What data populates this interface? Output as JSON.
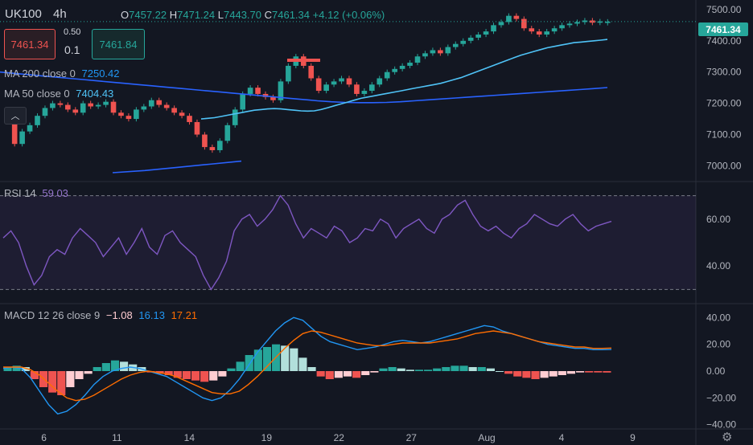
{
  "header": {
    "symbol": "UK100",
    "interval": "4h",
    "ohlc": {
      "open_label": "O",
      "open": "7457.22",
      "high_label": "H",
      "high": "7471.24",
      "low_label": "L",
      "low": "7443.70",
      "close_label": "C",
      "close": "7461.34",
      "change": "+4.12 (+0.06%)"
    }
  },
  "trade_panel": {
    "sell_price": "7461.34",
    "spread": "0.50",
    "quantity": "0.1",
    "buy_price": "7461.84"
  },
  "indicators": {
    "ma200": {
      "label": "MA 200 close 0",
      "value": "7250.42",
      "color": "#2962ff"
    },
    "ma50": {
      "label": "MA 50 close 0",
      "value": "7404.43",
      "color": "#2196f3"
    },
    "rsi": {
      "label": "RSI 14",
      "value": "59.03",
      "color": "#7e57c2"
    },
    "macd": {
      "label": "MACD 12 26 close 9",
      "hist": "−1.08",
      "macd": "16.13",
      "signal": "17.21"
    }
  },
  "last_price_tag": "7461.34",
  "colors": {
    "up": "#26a69a",
    "down": "#ef5350",
    "background": "#131722",
    "macd_line": "#2196f3",
    "signal_line": "#ff6d00",
    "rsi_line": "#7e57c2",
    "hist_up_strong": "#26a69a",
    "hist_up_weak": "#b2dfdb",
    "hist_down_strong": "#ef5350",
    "hist_down_weak": "#ffcdd2"
  },
  "chart_data": [
    {
      "type": "candlestick",
      "title": "UK100 4h",
      "yticks": [
        "7500.00",
        "7400.00",
        "7300.00",
        "7200.00",
        "7100.00",
        "7000.00"
      ],
      "ylim": [
        6960,
        7510
      ],
      "xtick_labels": [
        "6",
        "11",
        "14",
        "19",
        "22",
        "27",
        "Aug",
        "4",
        "9"
      ],
      "grid": false,
      "close": [
        7150,
        7070,
        7110,
        7130,
        7160,
        7185,
        7200,
        7195,
        7180,
        7170,
        7200,
        7190,
        7195,
        7205,
        7170,
        7160,
        7150,
        7180,
        7190,
        7210,
        7195,
        7185,
        7170,
        7160,
        7140,
        7100,
        7060,
        7050,
        7080,
        7130,
        7180,
        7230,
        7250,
        7230,
        7220,
        7210,
        7270,
        7320,
        7350,
        7320,
        7280,
        7240,
        7260,
        7270,
        7280,
        7260,
        7230,
        7240,
        7260,
        7280,
        7300,
        7310,
        7320,
        7330,
        7350,
        7360,
        7370,
        7360,
        7380,
        7390,
        7400,
        7410,
        7420,
        7430,
        7450,
        7460,
        7480,
        7470,
        7440,
        7430,
        7420,
        7430,
        7440,
        7450,
        7455,
        7460,
        7465,
        7458,
        7462,
        7461.34
      ],
      "open": [
        7170,
        7150,
        7070,
        7110,
        7130,
        7160,
        7185,
        7200,
        7195,
        7180,
        7170,
        7200,
        7190,
        7195,
        7205,
        7170,
        7160,
        7150,
        7180,
        7190,
        7210,
        7195,
        7185,
        7170,
        7160,
        7140,
        7100,
        7060,
        7050,
        7080,
        7130,
        7180,
        7230,
        7250,
        7230,
        7220,
        7210,
        7270,
        7320,
        7350,
        7320,
        7280,
        7240,
        7260,
        7270,
        7280,
        7260,
        7230,
        7240,
        7260,
        7280,
        7300,
        7310,
        7320,
        7330,
        7350,
        7360,
        7370,
        7360,
        7380,
        7390,
        7400,
        7410,
        7420,
        7430,
        7450,
        7460,
        7480,
        7470,
        7440,
        7430,
        7420,
        7430,
        7440,
        7450,
        7455,
        7460,
        7465,
        7458,
        7457.22
      ],
      "ma50": [
        7150,
        7152,
        7154,
        7158,
        7162,
        7166,
        7170,
        7174,
        7178,
        7180,
        7182,
        7183,
        7182,
        7180,
        7178,
        7176,
        7175,
        7176,
        7180,
        7186,
        7192,
        7198,
        7204,
        7210,
        7216,
        7220,
        7224,
        7228,
        7232,
        7236,
        7240,
        7244,
        7248,
        7252,
        7256,
        7260,
        7264,
        7270,
        7276,
        7282,
        7290,
        7298,
        7306,
        7314,
        7322,
        7330,
        7338,
        7346,
        7354,
        7360,
        7366,
        7372,
        7378,
        7382,
        7386,
        7390,
        7394,
        7396,
        7398,
        7400,
        7402,
        7404.43
      ],
      "ma200": [
        7300,
        7296,
        7292,
        7288,
        7284,
        7280,
        7276,
        7272,
        7268,
        7264,
        7260,
        7256,
        7252,
        7248,
        7244,
        7240,
        7236,
        7232,
        7228,
        7224,
        7220,
        7216,
        7212,
        7208,
        7205,
        7203,
        7202,
        7202,
        7203,
        7205,
        7208,
        7211,
        7214,
        7217,
        7220,
        7223,
        7226,
        7229,
        7232,
        7235,
        7238,
        7241,
        7244,
        7247,
        7250.42
      ],
      "ma50_early": [
        6978,
        6985,
        6995,
        7005,
        7015
      ]
    },
    {
      "type": "line",
      "title": "RSI 14",
      "yticks": [
        "60.00",
        "40.00"
      ],
      "ylim": [
        25,
        75
      ],
      "bands": [
        70,
        30
      ],
      "values": [
        52,
        55,
        50,
        40,
        32,
        36,
        44,
        47,
        45,
        52,
        56,
        53,
        50,
        44,
        48,
        52,
        45,
        50,
        56,
        48,
        45,
        53,
        55,
        50,
        47,
        44,
        36,
        30,
        35,
        42,
        55,
        60,
        62,
        57,
        60,
        64,
        70,
        66,
        58,
        52,
        56,
        54,
        52,
        57,
        55,
        50,
        52,
        56,
        55,
        60,
        58,
        52,
        56,
        58,
        60,
        56,
        54,
        60,
        62,
        66,
        68,
        62,
        57,
        55,
        57,
        54,
        52,
        56,
        58,
        62,
        60,
        58,
        57,
        60,
        62,
        58,
        55,
        57,
        58,
        59.03
      ]
    },
    {
      "type": "macd",
      "title": "MACD 12 26 close 9",
      "yticks": [
        "40.00",
        "20.00",
        "0.00",
        "−20.00",
        "−40.00"
      ],
      "ylim": [
        -42,
        48
      ],
      "macd": [
        2,
        3,
        2,
        -5,
        -15,
        -25,
        -32,
        -30,
        -25,
        -18,
        -10,
        -4,
        0,
        2,
        3,
        2,
        0,
        -2,
        -4,
        -8,
        -12,
        -16,
        -20,
        -22,
        -20,
        -14,
        -6,
        4,
        14,
        22,
        30,
        36,
        40,
        38,
        32,
        26,
        22,
        20,
        18,
        16,
        17,
        18,
        20,
        22,
        23,
        22,
        21,
        22,
        24,
        26,
        28,
        30,
        32,
        34,
        33,
        30,
        28,
        26,
        24,
        22,
        20,
        19,
        18,
        17,
        17,
        16,
        16,
        16.13
      ],
      "signal": [
        3,
        3,
        3,
        1,
        -3,
        -9,
        -15,
        -20,
        -22,
        -21,
        -18,
        -14,
        -10,
        -6,
        -3,
        -1,
        0,
        -1,
        -2,
        -4,
        -7,
        -10,
        -13,
        -16,
        -17,
        -17,
        -15,
        -10,
        -4,
        3,
        10,
        17,
        23,
        28,
        30,
        29,
        27,
        25,
        23,
        21,
        20,
        19,
        19,
        20,
        21,
        21,
        21,
        21,
        22,
        23,
        24,
        26,
        28,
        29,
        30,
        29,
        28,
        26,
        24,
        22,
        21,
        20,
        19,
        18,
        18,
        17,
        17,
        17.21
      ],
      "histogram": [
        3,
        4,
        3,
        -6,
        -12,
        -16,
        -18,
        -12,
        -6,
        -2,
        3,
        6,
        8,
        7,
        5,
        3,
        -1,
        -2,
        -3,
        -5,
        -6,
        -7,
        -8,
        -7,
        -4,
        2,
        7,
        12,
        16,
        18,
        20,
        19,
        17,
        10,
        3,
        -4,
        -6,
        -5,
        -4,
        -5,
        -3,
        -1,
        2,
        3,
        2,
        1,
        1,
        1,
        2,
        3,
        4,
        4,
        3,
        3,
        2,
        0,
        -2,
        -4,
        -5,
        -6,
        -5,
        -4,
        -3,
        -2,
        -1,
        -1,
        -1,
        -1.08
      ]
    }
  ]
}
